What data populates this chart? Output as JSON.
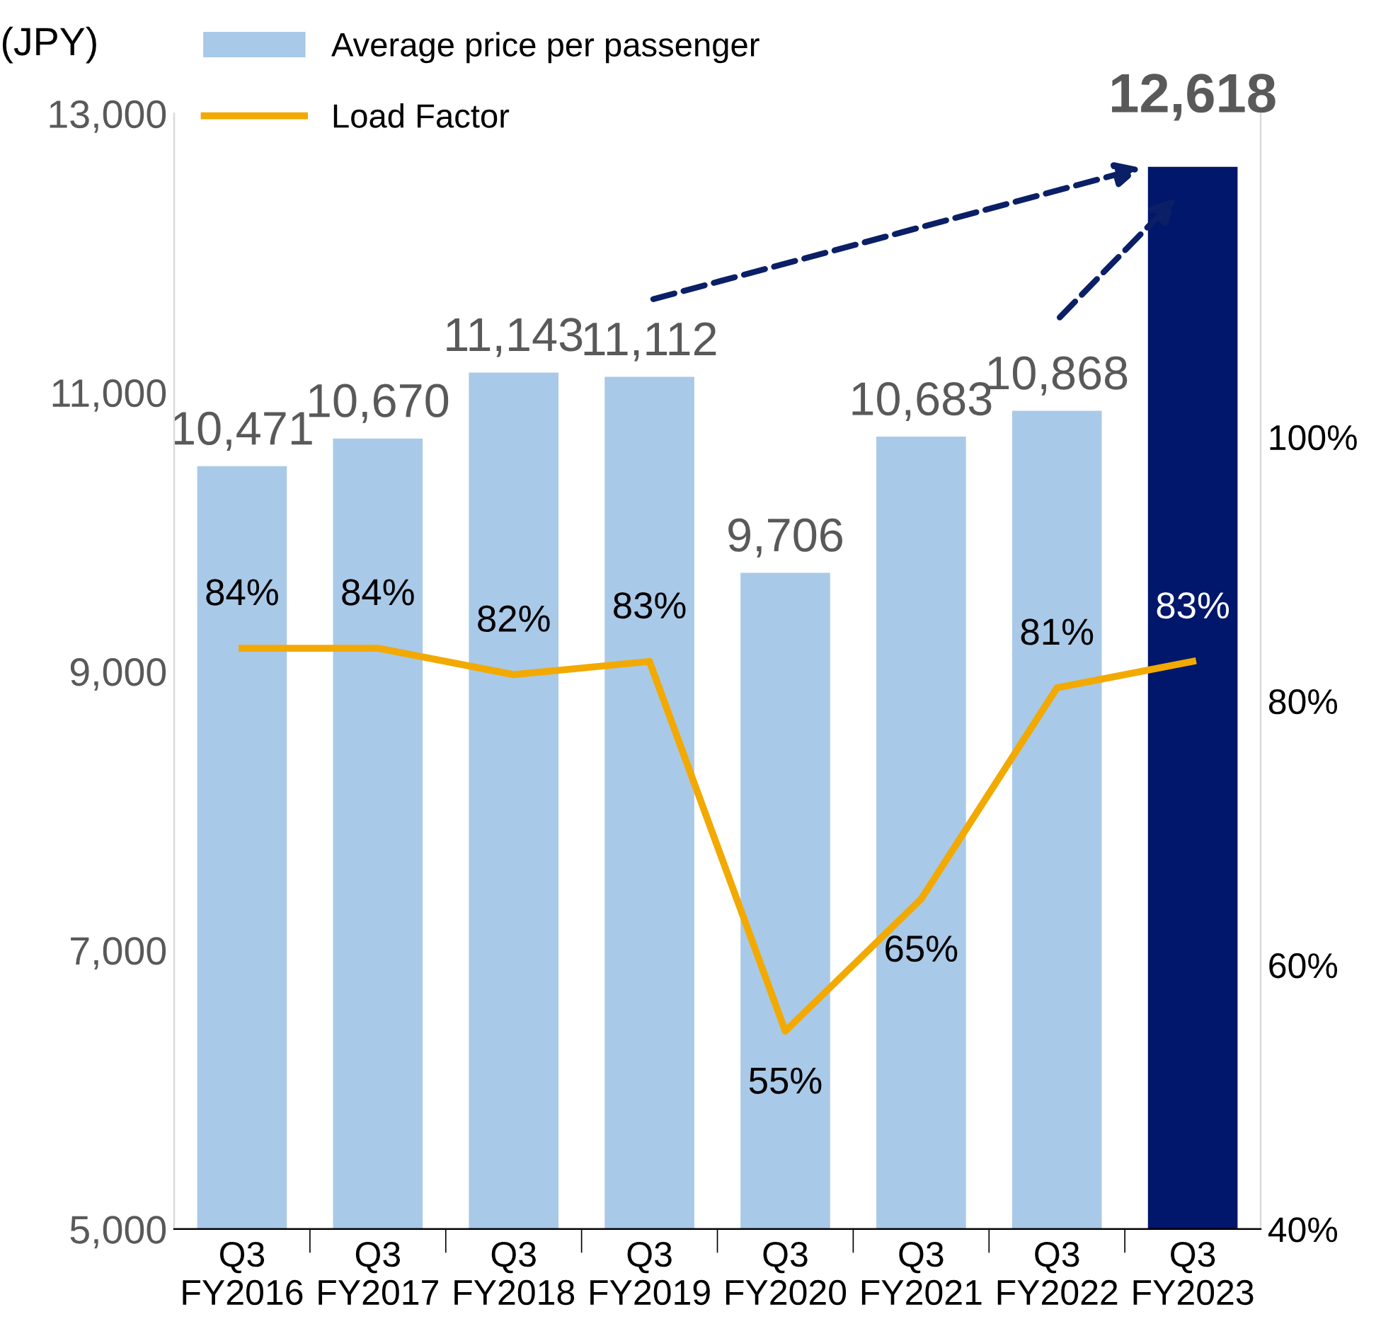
{
  "chart_data": {
    "type": "bar",
    "ylabel": "(JPY)",
    "categories": [
      "Q3\nFY2016",
      "Q3\nFY2017",
      "Q3\nFY2018",
      "Q3\nFY2019",
      "Q3\nFY2020",
      "Q3\nFY2021",
      "Q3\nFY2022",
      "Q3\nFY2023"
    ],
    "series": [
      {
        "name": "Average price per passenger",
        "colors": [
          "#a9c9e8",
          "#a9c9e8",
          "#a9c9e8",
          "#a9c9e8",
          "#a9c9e8",
          "#a9c9e8",
          "#a9c9e8",
          "#00176b"
        ],
        "color": "#a9c9e8",
        "values": [
          10471,
          10670,
          11143,
          11112,
          9706,
          10683,
          10868,
          12618
        ],
        "value_labels": [
          "10,471",
          "10,670",
          "11,143",
          "11,112",
          "9,706",
          "10,683",
          "10,868",
          "12,618"
        ]
      },
      {
        "name": "Load Factor",
        "type": "line",
        "axis": "y2",
        "color": "#f2a900",
        "values": [
          84,
          84,
          82,
          83,
          55,
          65,
          81,
          83
        ],
        "value_labels": [
          "84%",
          "84%",
          "82%",
          "83%",
          "55%",
          "65%",
          "81%",
          "83%"
        ]
      }
    ],
    "ylim": [
      5000,
      13000
    ],
    "yticks": [
      {
        "value": 5000,
        "label": "5,000"
      },
      {
        "value": 7000,
        "label": "7,000"
      },
      {
        "value": 9000,
        "label": "9,000"
      },
      {
        "value": 11000,
        "label": "11,000"
      },
      {
        "value": 13000,
        "label": "13,000"
      }
    ],
    "y2lim": [
      40,
      124.5
    ],
    "y2ticks": [
      {
        "value": 40,
        "label": "40%"
      },
      {
        "value": 60,
        "label": "60%"
      },
      {
        "value": 80,
        "label": "80%"
      },
      {
        "value": 100,
        "label": "100%"
      }
    ],
    "grid": false,
    "legend": "top left",
    "marker": "none",
    "line_style": "solid"
  }
}
